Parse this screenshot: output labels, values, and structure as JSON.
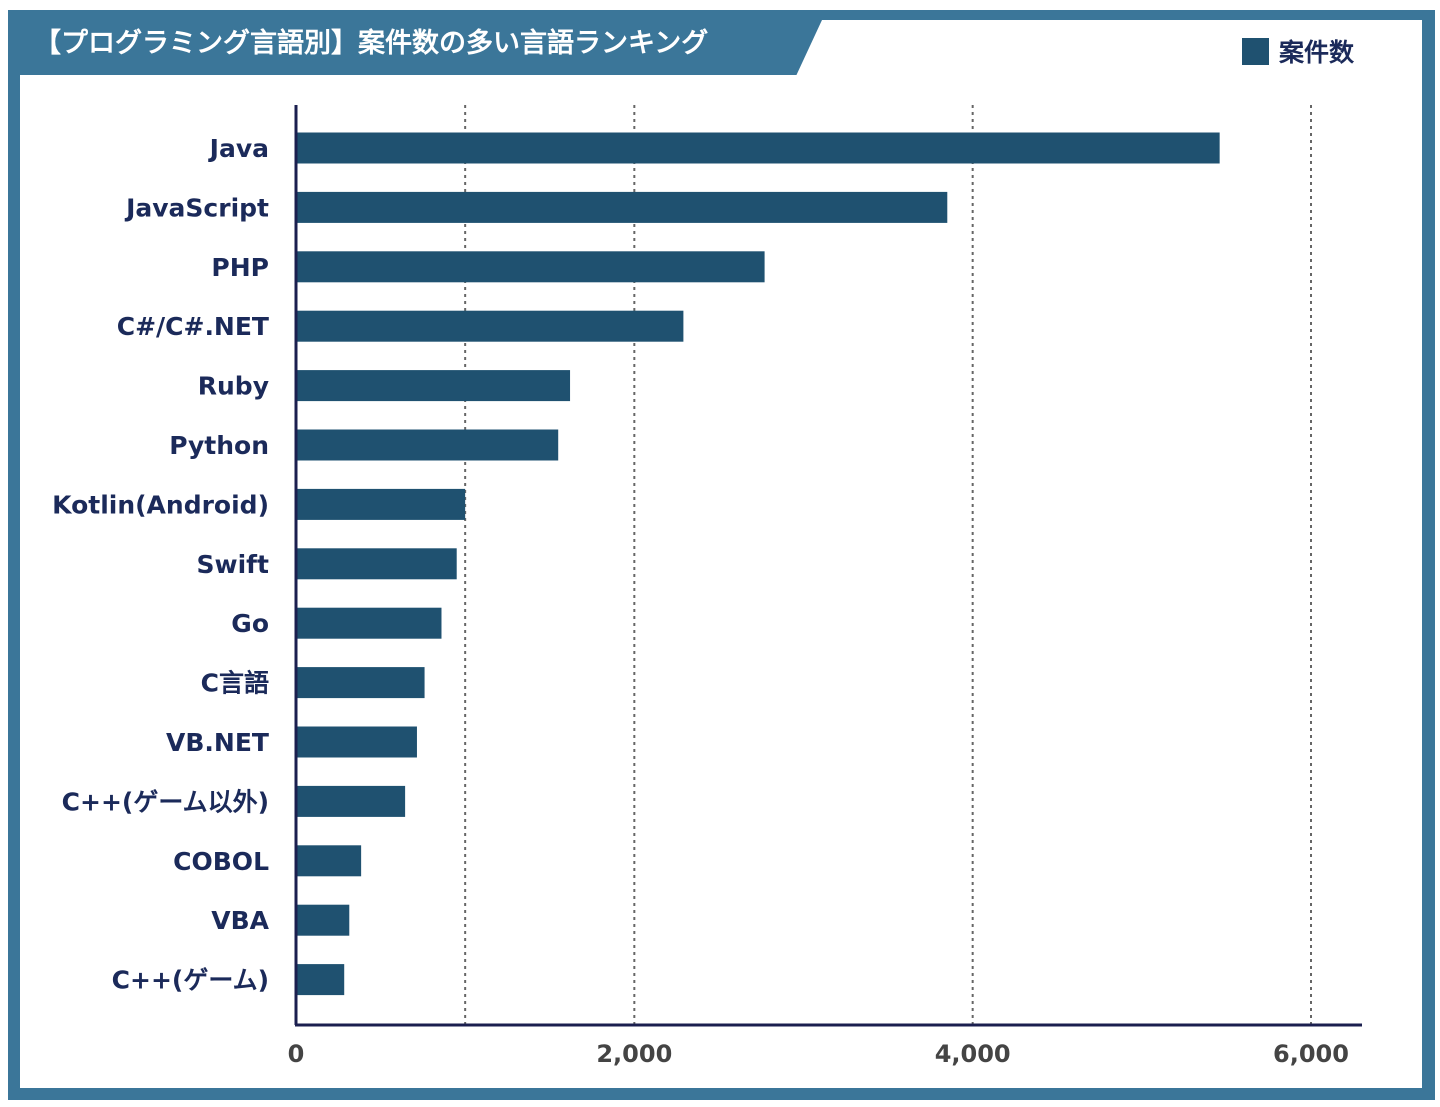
{
  "chart_data": {
    "type": "bar",
    "orientation": "horizontal",
    "title": "【プログラミング言語別】案件数の多い言語ランキング",
    "categories": [
      "Java",
      "JavaScript",
      "PHP",
      "C#/C#.NET",
      "Ruby",
      "Python",
      "Kotlin(Android)",
      "Swift",
      "Go",
      "C言語",
      "VB.NET",
      "C++(ゲーム以外)",
      "COBOL",
      "VBA",
      "C++(ゲーム)"
    ],
    "series": [
      {
        "name": "案件数",
        "values": [
          5460,
          3850,
          2770,
          2290,
          1620,
          1550,
          1000,
          950,
          860,
          760,
          715,
          645,
          385,
          315,
          285
        ]
      }
    ],
    "xticks": [
      0,
      2000,
      4000,
      6000
    ],
    "xtick_labels": [
      "0",
      "2,000",
      "4,000",
      "6,000"
    ],
    "gridlines": [
      1000,
      2000,
      4000,
      6000
    ],
    "xlim": [
      0,
      6300
    ],
    "grid": "vertical dotted",
    "legend": "top-right",
    "colors": {
      "bar": "#1f5170",
      "frame": "#3b7699",
      "label": "#1b2a5a"
    }
  }
}
